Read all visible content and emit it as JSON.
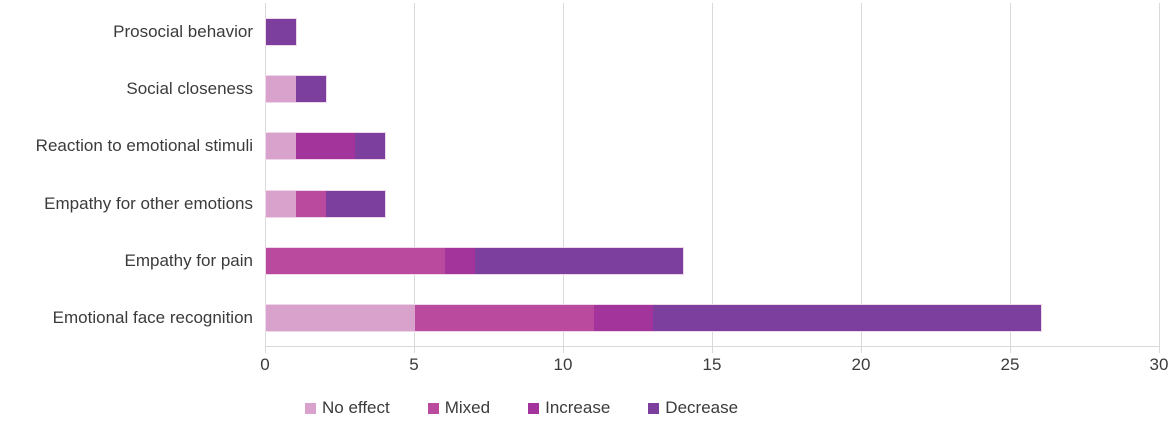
{
  "chart_data": {
    "type": "bar",
    "orientation": "horizontal",
    "stacked": true,
    "title": "",
    "xlabel": "",
    "ylabel": "",
    "categories": [
      "Prosocial behavior",
      "Social closeness",
      "Reaction to emotional stimuli",
      "Empathy for other emotions",
      "Empathy for pain",
      "Emotional face recognition"
    ],
    "series": [
      {
        "name": "No effect",
        "color": "#D9A2CC",
        "values": [
          0,
          1,
          1,
          1,
          0,
          5
        ]
      },
      {
        "name": "Mixed",
        "color": "#B94A9D",
        "values": [
          0,
          0,
          0,
          1,
          6,
          6
        ]
      },
      {
        "name": "Increase",
        "color": "#A3349C",
        "values": [
          0,
          0,
          2,
          0,
          1,
          2
        ]
      },
      {
        "name": "Decrease",
        "color": "#7C3F9D",
        "values": [
          1,
          1,
          1,
          2,
          7,
          13
        ]
      }
    ],
    "totals": [
      1,
      2,
      4,
      4,
      14,
      26
    ],
    "x_axis": {
      "min": 0,
      "max": 30,
      "tick_step": 5,
      "tick_labels": [
        "0",
        "5",
        "10",
        "15",
        "20",
        "25",
        "30"
      ]
    },
    "legend": {
      "position": "bottom",
      "items": [
        "No effect",
        "Mixed",
        "Increase",
        "Decrease"
      ]
    },
    "grid": {
      "vertical_gridlines": true,
      "gridline_color": "#D9D9D9",
      "axis_line_color": "#D9D9D9"
    },
    "text_color": "#3b3b3b",
    "background_color": "#FFFFFF"
  }
}
